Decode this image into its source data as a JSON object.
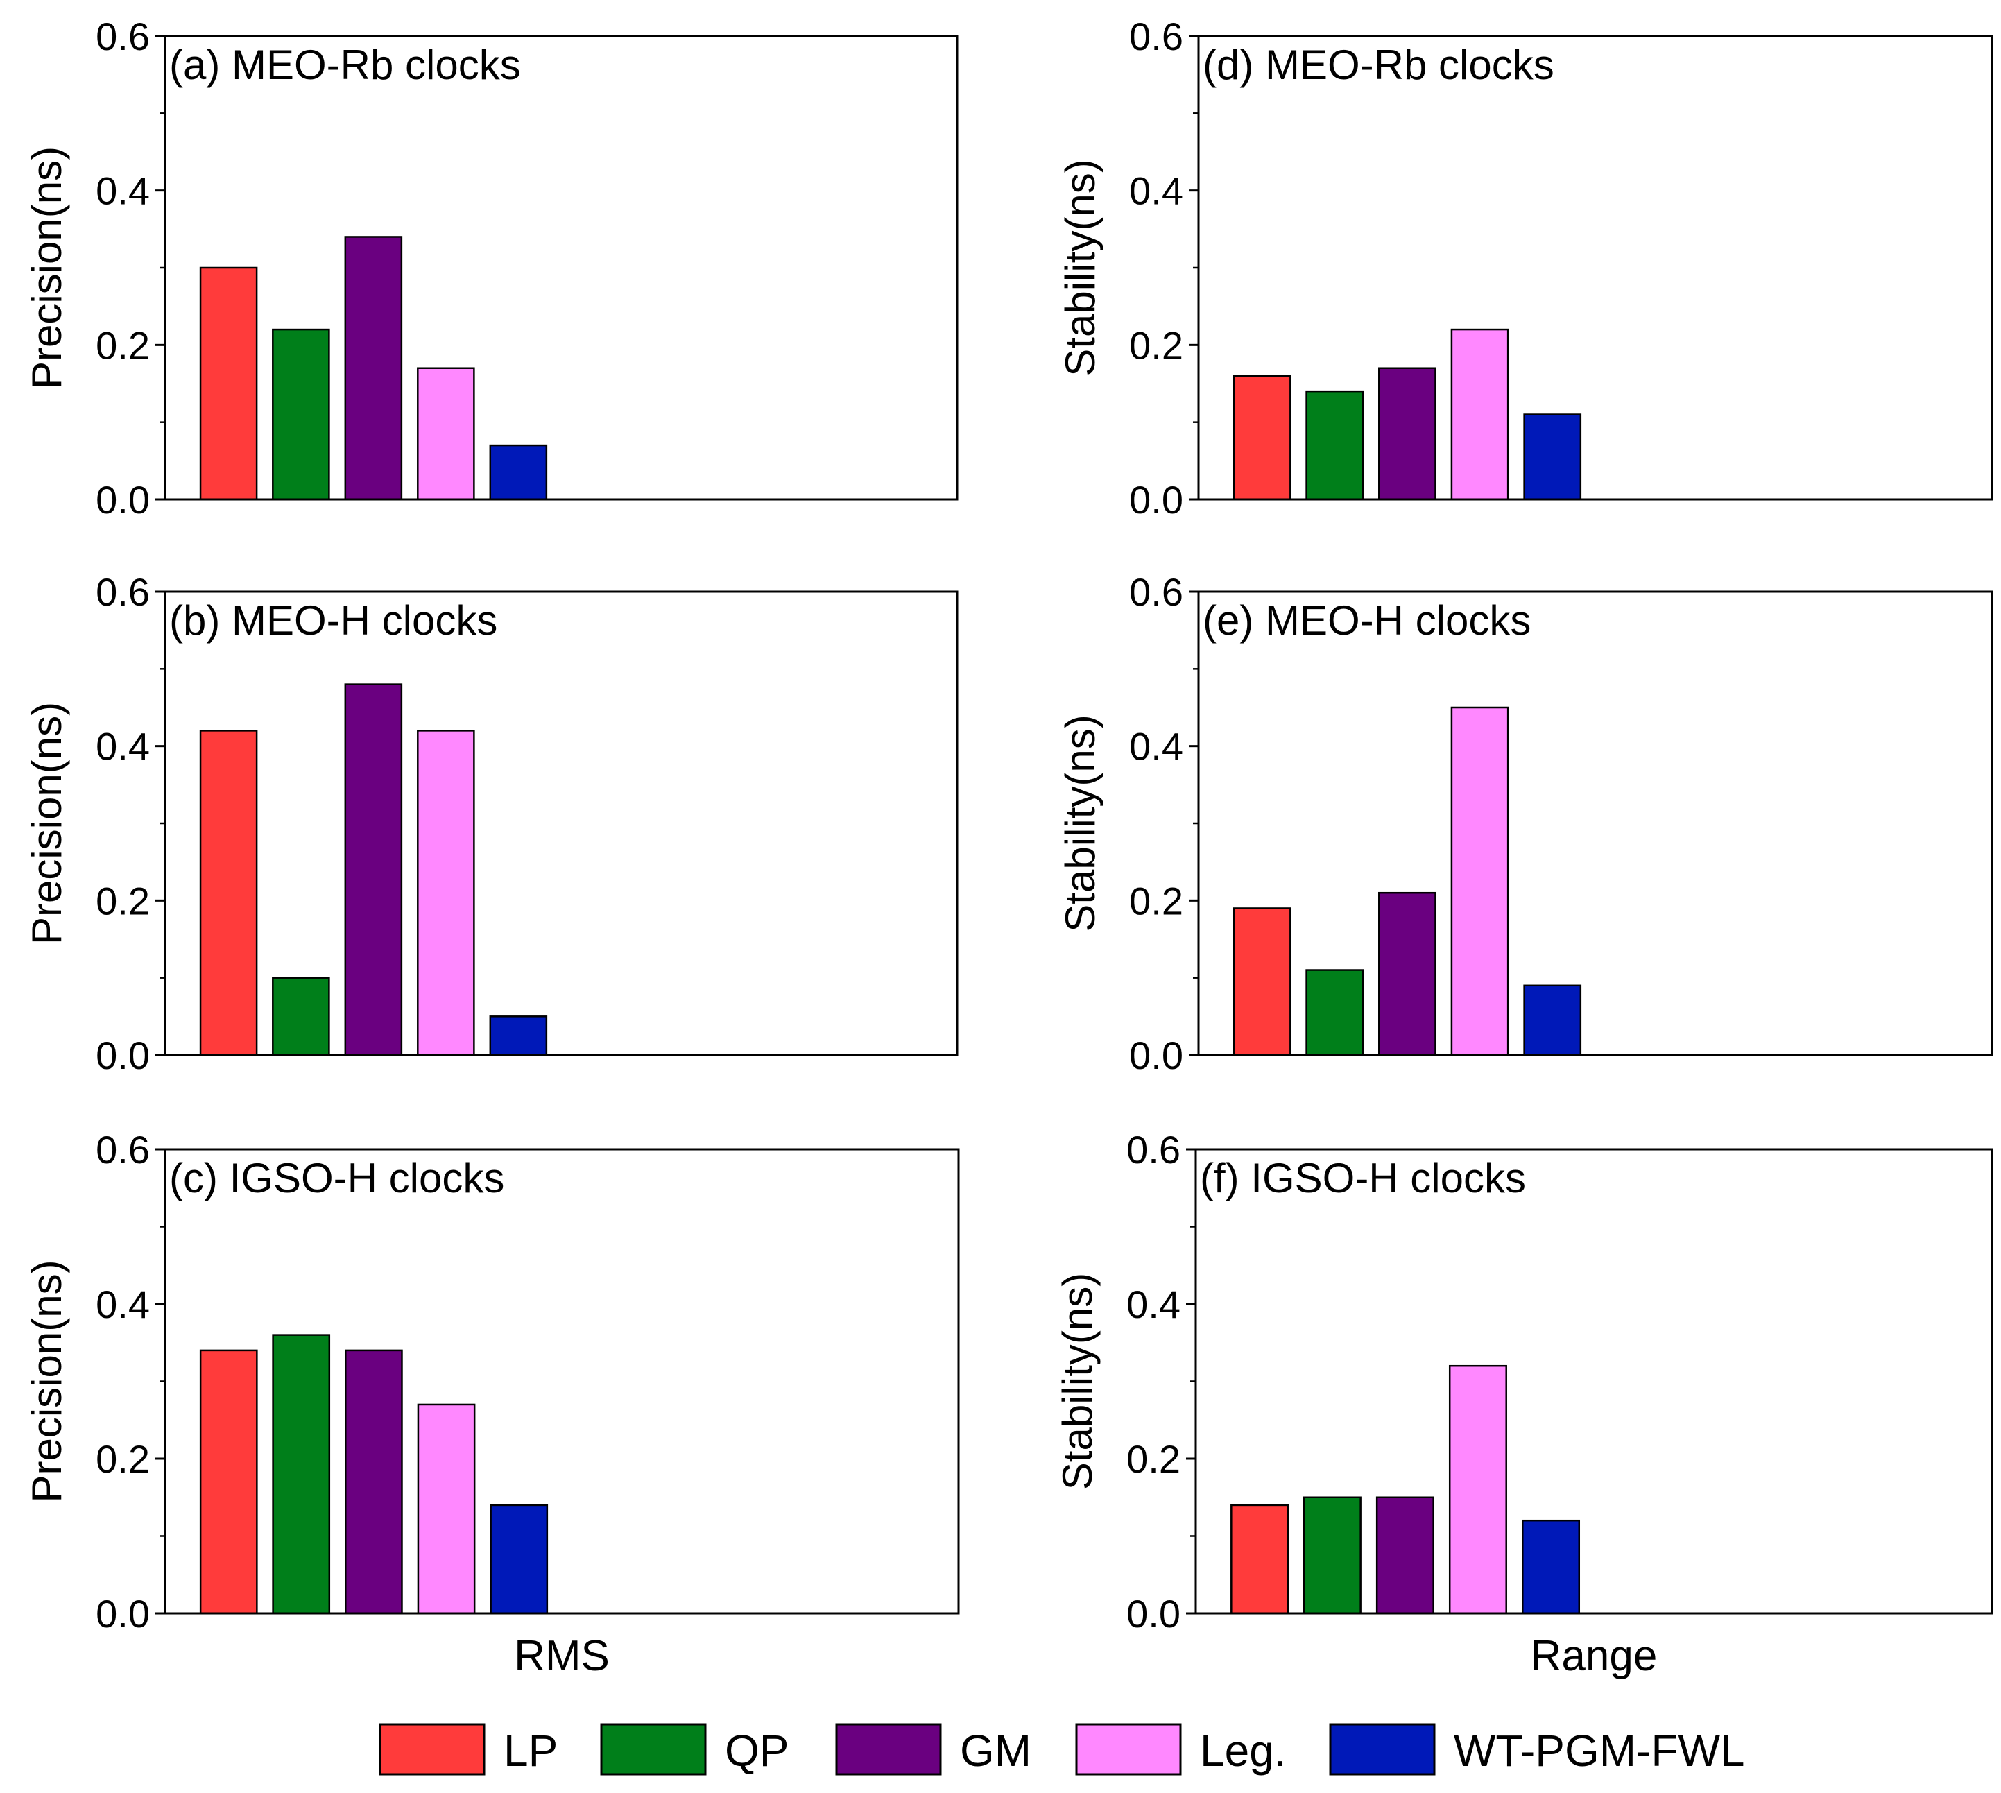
{
  "colors": {
    "LP": "#ff3b3b",
    "QP": "#007f1a",
    "GM": "#6a0080",
    "Leg.": "#ff88ff",
    "WT-PGM-FWL": "#0019b8",
    "axis": "#000000"
  },
  "legend": [
    "LP",
    "QP",
    "GM",
    "Leg.",
    "WT-PGM-FWL"
  ],
  "chart_data": [
    {
      "type": "bar",
      "title": "(a) MEO-Rb clocks",
      "ylabel": "Precision(ns)",
      "xlabel": "",
      "ylim": [
        0,
        0.6
      ],
      "yticks": [
        "0.0",
        "0.2",
        "0.4",
        "0.6"
      ],
      "categories": [
        "LP",
        "QP",
        "GM",
        "Leg.",
        "WT-PGM-FWL"
      ],
      "values": [
        0.3,
        0.22,
        0.34,
        0.17,
        0.07
      ]
    },
    {
      "type": "bar",
      "title": "(b) MEO-H clocks",
      "ylabel": "Precision(ns)",
      "xlabel": "",
      "ylim": [
        0,
        0.6
      ],
      "yticks": [
        "0.0",
        "0.2",
        "0.4",
        "0.6"
      ],
      "categories": [
        "LP",
        "QP",
        "GM",
        "Leg.",
        "WT-PGM-FWL"
      ],
      "values": [
        0.42,
        0.1,
        0.48,
        0.42,
        0.05
      ]
    },
    {
      "type": "bar",
      "title": "(c) IGSO-H clocks",
      "ylabel": "Precision(ns)",
      "xlabel": "RMS",
      "ylim": [
        0,
        0.6
      ],
      "yticks": [
        "0.0",
        "0.2",
        "0.4",
        "0.6"
      ],
      "categories": [
        "LP",
        "QP",
        "GM",
        "Leg.",
        "WT-PGM-FWL"
      ],
      "values": [
        0.34,
        0.36,
        0.34,
        0.27,
        0.14
      ]
    },
    {
      "type": "bar",
      "title": "(d) MEO-Rb clocks",
      "ylabel": "Stability(ns)",
      "xlabel": "",
      "ylim": [
        0,
        0.6
      ],
      "yticks": [
        "0.0",
        "0.2",
        "0.4",
        "0.6"
      ],
      "categories": [
        "LP",
        "QP",
        "GM",
        "Leg.",
        "WT-PGM-FWL"
      ],
      "values": [
        0.16,
        0.14,
        0.17,
        0.22,
        0.11
      ]
    },
    {
      "type": "bar",
      "title": "(e) MEO-H clocks",
      "ylabel": "Stability(ns)",
      "xlabel": "",
      "ylim": [
        0,
        0.6
      ],
      "yticks": [
        "0.0",
        "0.2",
        "0.4",
        "0.6"
      ],
      "categories": [
        "LP",
        "QP",
        "GM",
        "Leg.",
        "WT-PGM-FWL"
      ],
      "values": [
        0.19,
        0.11,
        0.21,
        0.45,
        0.09
      ]
    },
    {
      "type": "bar",
      "title": "(f) IGSO-H clocks",
      "ylabel": "Stability(ns)",
      "xlabel": "Range",
      "ylim": [
        0,
        0.6
      ],
      "yticks": [
        "0.0",
        "0.2",
        "0.4",
        "0.6"
      ],
      "categories": [
        "LP",
        "QP",
        "GM",
        "Leg.",
        "WT-PGM-FWL"
      ],
      "values": [
        0.14,
        0.15,
        0.15,
        0.32,
        0.12
      ]
    }
  ]
}
